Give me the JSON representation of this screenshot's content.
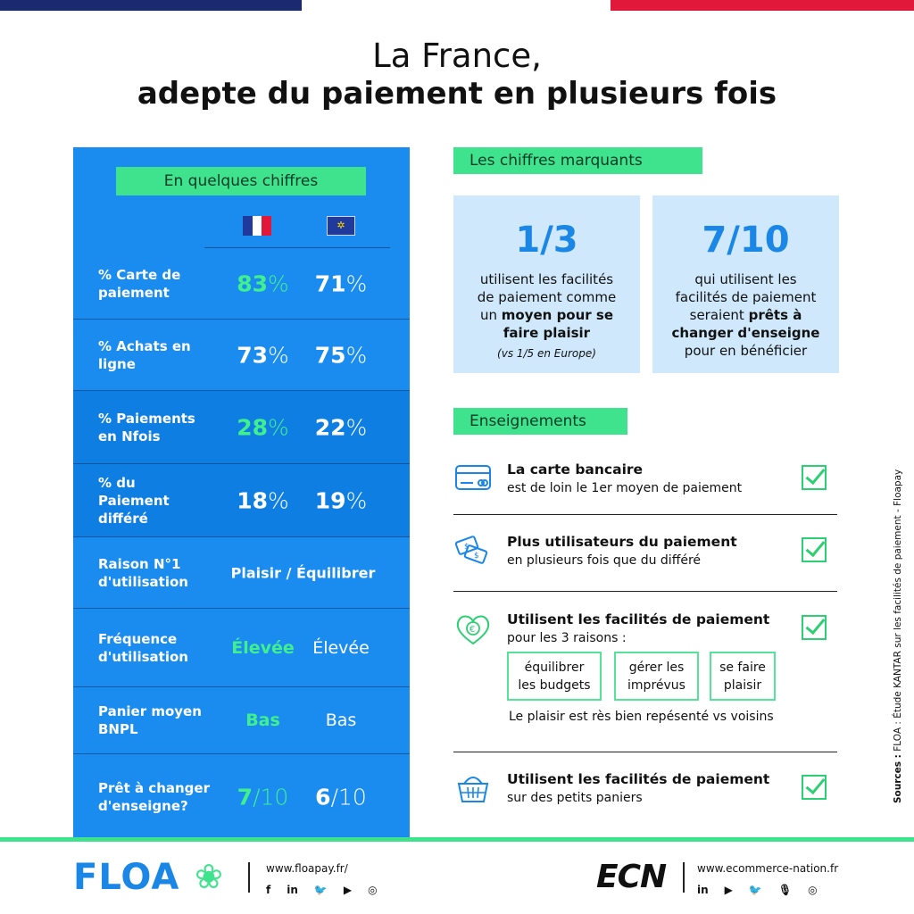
{
  "title": {
    "line1": "La France,",
    "line2": "adepte du paiement en plusieurs fois"
  },
  "left_panel": {
    "tag": "En quelques chiffres",
    "flags": [
      "france-flag-icon",
      "eu-flag-icon"
    ],
    "rows": [
      {
        "label": "% Carte de paiement",
        "fr_num": "83",
        "fr_unit": "%",
        "eu_num": "71",
        "eu_unit": "%"
      },
      {
        "label": "% Achats en ligne",
        "fr_num": "73",
        "fr_unit": "%",
        "eu_num": "75",
        "eu_unit": "%"
      },
      {
        "label": "% Paiements en Nfois",
        "fr_num": "28",
        "fr_unit": "%",
        "eu_num": "22",
        "eu_unit": "%"
      },
      {
        "label": "% du Paiement différé",
        "fr_num": "18",
        "fr_unit": "%",
        "eu_num": "19",
        "eu_unit": "%"
      },
      {
        "label": "Raison N°1 d'utilisation",
        "both": "Plaisir / Équilibrer"
      },
      {
        "label": "Fréquence d'utilisation",
        "fr": "Élevée",
        "eu": "Élevée"
      },
      {
        "label": "Panier moyen BNPL",
        "fr": "Bas",
        "eu": "Bas"
      },
      {
        "label": "Prêt à changer d'enseigne?",
        "fr_num": "7",
        "fr_unit": "/10",
        "eu_num": "6",
        "eu_unit": "/10"
      }
    ]
  },
  "chiffres": {
    "tag": "Les chiffres marquants",
    "card1": {
      "big": "1/3",
      "t1": "utilisent les facilités",
      "t2": "de paiement comme",
      "t3a": "un ",
      "t3b": "moyen pour se",
      "t4": "faire plaisir",
      "note": "(vs 1/5 en Europe)"
    },
    "card2": {
      "big": "7/10",
      "t1": "qui utilisent les",
      "t2": "facilités de paiement",
      "t3a": "seraient ",
      "t3b": "prêts à",
      "t4": "changer d'enseigne",
      "t5": "pour en bénéficier"
    }
  },
  "enseignements": {
    "tag": "Enseignements",
    "items": [
      {
        "icon": "credit-card-icon",
        "title": "La carte bancaire",
        "sub": "est de loin le 1er moyen de paiement"
      },
      {
        "icon": "money-icon",
        "title": "Plus utilisateurs du paiement",
        "sub": "en plusieurs fois que du différé"
      },
      {
        "icon": "heart-euro-icon",
        "title": "Utilisent les facilités de paiement",
        "sub": "pour les 3 raisons :"
      },
      {
        "icon": "basket-icon",
        "title": "Utilisent les facilités de paiement",
        "sub": "sur des petits paniers"
      }
    ],
    "reasons": [
      {
        "l1": "équilibrer",
        "l2": "les budgets"
      },
      {
        "l1": "gérer les",
        "l2": "imprévus"
      },
      {
        "l1": "se faire",
        "l2": "plaisir"
      }
    ],
    "reason_note": "Le plaisir est rès bien repésenté vs voisins"
  },
  "source": {
    "label": "Sources :",
    "text": " FLOA : Étude KANTAR sur les facilités de paiement - Floapay"
  },
  "footer": {
    "floa_logo": "FLOA",
    "floa_url": "www.floapay.fr/",
    "floa_social": [
      "f",
      "in",
      "tw",
      "yt",
      "ig"
    ],
    "ecn_logo": "ECN",
    "ecn_url": "www.ecommerce-nation.fr",
    "ecn_social": [
      "in",
      "yt",
      "tw",
      "mic",
      "ig"
    ]
  }
}
